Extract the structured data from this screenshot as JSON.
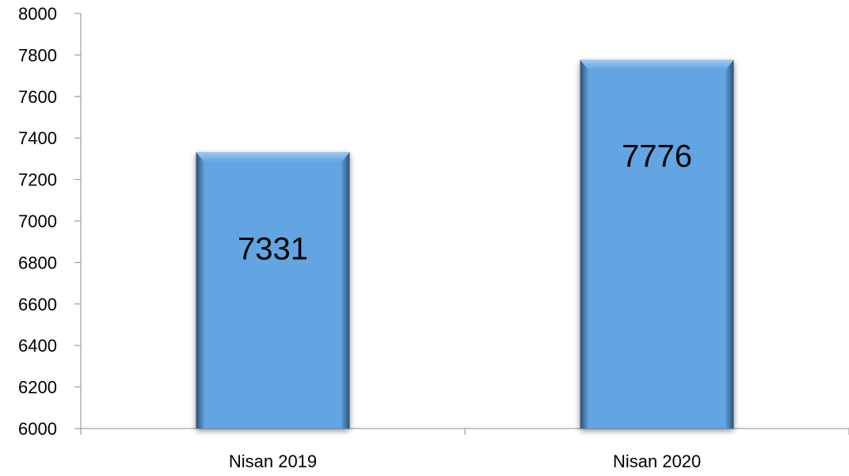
{
  "chart_data": {
    "type": "bar",
    "title": "",
    "xlabel": "",
    "ylabel": "",
    "categories": [
      "Nisan 2019",
      "Nisan 2020"
    ],
    "values": [
      7331,
      7776
    ],
    "data_labels": [
      "7331",
      "7776"
    ],
    "ylim": [
      6000,
      8000
    ],
    "yticks": [
      6000,
      6200,
      6400,
      6600,
      6800,
      7000,
      7200,
      7400,
      7600,
      7800,
      8000
    ],
    "ytick_labels": [
      "6000",
      "6200",
      "6400",
      "6600",
      "6800",
      "7000",
      "7200",
      "7400",
      "7600",
      "7800",
      "8000"
    ],
    "grid": false,
    "legend": "none",
    "colors": {
      "bar_fill": "#63a5e2",
      "bar_edge_light": "#a9cff3",
      "bar_edge_dark": "#1e3f5e",
      "axis": "#8c8c8c"
    }
  }
}
